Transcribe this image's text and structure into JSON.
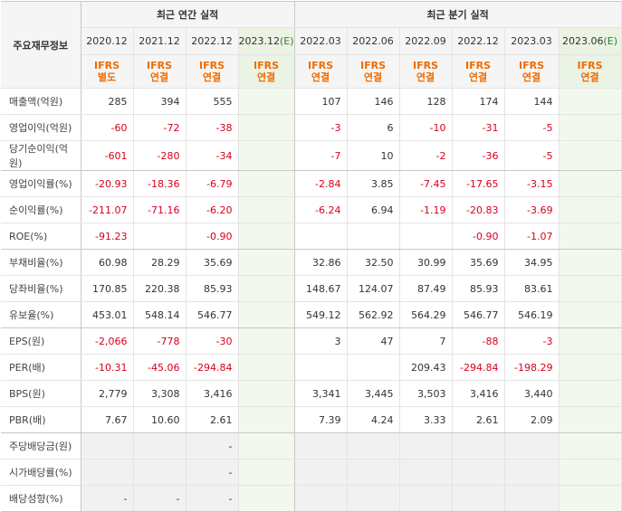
{
  "header": {
    "row_label": "주요재무정보",
    "annual_title": "최근 연간 실적",
    "quarter_title": "최근 분기 실적",
    "annual_periods": [
      {
        "period": "2020.12",
        "est": "",
        "std1": "IFRS",
        "std2": "별도"
      },
      {
        "period": "2021.12",
        "est": "",
        "std1": "IFRS",
        "std2": "연결"
      },
      {
        "period": "2022.12",
        "est": "",
        "std1": "IFRS",
        "std2": "연결"
      },
      {
        "period": "2023.12",
        "est": "(E)",
        "std1": "IFRS",
        "std2": "연결"
      }
    ],
    "quarter_periods": [
      {
        "period": "2022.03",
        "est": "",
        "std1": "IFRS",
        "std2": "연결"
      },
      {
        "period": "2022.06",
        "est": "",
        "std1": "IFRS",
        "std2": "연결"
      },
      {
        "period": "2022.09",
        "est": "",
        "std1": "IFRS",
        "std2": "연결"
      },
      {
        "period": "2022.12",
        "est": "",
        "std1": "IFRS",
        "std2": "연결"
      },
      {
        "period": "2023.03",
        "est": "",
        "std1": "IFRS",
        "std2": "연결"
      },
      {
        "period": "2023.06",
        "est": "(E)",
        "std1": "IFRS",
        "std2": "연결"
      }
    ]
  },
  "rows": [
    {
      "label": "매출액(억원)",
      "values": [
        "285",
        "394",
        "555",
        "",
        "107",
        "146",
        "128",
        "174",
        "144",
        ""
      ]
    },
    {
      "label": "영업이익(억원)",
      "values": [
        "-60",
        "-72",
        "-38",
        "",
        "-3",
        "6",
        "-10",
        "-31",
        "-5",
        ""
      ]
    },
    {
      "label": "당기순이익(억원)",
      "values": [
        "-601",
        "-280",
        "-34",
        "",
        "-7",
        "10",
        "-2",
        "-36",
        "-5",
        ""
      ]
    },
    {
      "label": "영업이익률(%)",
      "values": [
        "-20.93",
        "-18.36",
        "-6.79",
        "",
        "-2.84",
        "3.85",
        "-7.45",
        "-17.65",
        "-3.15",
        ""
      ]
    },
    {
      "label": "순이익률(%)",
      "values": [
        "-211.07",
        "-71.16",
        "-6.20",
        "",
        "-6.24",
        "6.94",
        "-1.19",
        "-20.83",
        "-3.69",
        ""
      ]
    },
    {
      "label": "ROE(%)",
      "values": [
        "-91.23",
        "",
        "-0.90",
        "",
        "",
        "",
        "",
        "-0.90",
        "-1.07",
        ""
      ]
    },
    {
      "label": "부채비율(%)",
      "values": [
        "60.98",
        "28.29",
        "35.69",
        "",
        "32.86",
        "32.50",
        "30.99",
        "35.69",
        "34.95",
        ""
      ]
    },
    {
      "label": "당좌비율(%)",
      "values": [
        "170.85",
        "220.38",
        "85.93",
        "",
        "148.67",
        "124.07",
        "87.49",
        "85.93",
        "83.61",
        ""
      ]
    },
    {
      "label": "유보율(%)",
      "values": [
        "453.01",
        "548.14",
        "546.77",
        "",
        "549.12",
        "562.92",
        "564.29",
        "546.77",
        "546.19",
        ""
      ]
    },
    {
      "label": "EPS(원)",
      "values": [
        "-2,066",
        "-778",
        "-30",
        "",
        "3",
        "47",
        "7",
        "-88",
        "-3",
        ""
      ]
    },
    {
      "label": "PER(배)",
      "values": [
        "-10.31",
        "-45.06",
        "-294.84",
        "",
        "",
        "",
        "209.43",
        "-294.84",
        "-198.29",
        ""
      ]
    },
    {
      "label": "BPS(원)",
      "values": [
        "2,779",
        "3,308",
        "3,416",
        "",
        "3,341",
        "3,445",
        "3,503",
        "3,416",
        "3,440",
        ""
      ]
    },
    {
      "label": "PBR(배)",
      "values": [
        "7.67",
        "10.60",
        "2.61",
        "",
        "7.39",
        "4.24",
        "3.33",
        "2.61",
        "2.09",
        ""
      ]
    },
    {
      "label": "주당배당금(원)",
      "values": [
        "",
        "",
        "-",
        "",
        "",
        "",
        "",
        "",
        "",
        ""
      ]
    },
    {
      "label": "시가배당률(%)",
      "values": [
        "",
        "",
        "-",
        "",
        "",
        "",
        "",
        "",
        "",
        ""
      ]
    },
    {
      "label": "배당성향(%)",
      "values": [
        "-",
        "-",
        "-",
        "",
        "",
        "",
        "",
        "",
        "",
        ""
      ]
    }
  ]
}
